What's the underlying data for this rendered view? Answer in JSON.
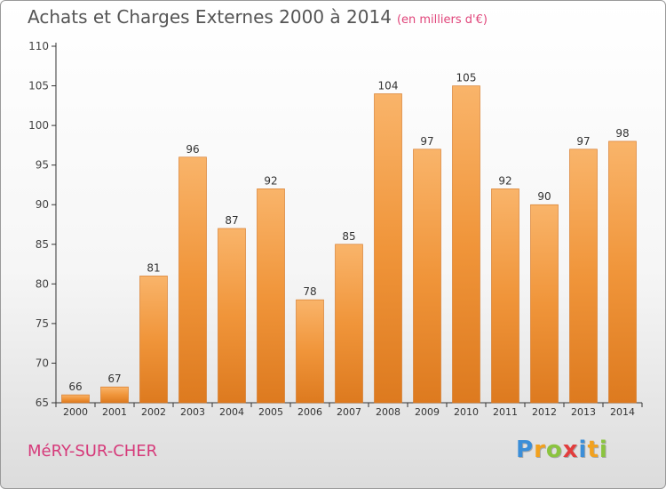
{
  "title": "Achats et Charges Externes 2000 à 2014",
  "subtitle": "(en milliers d'€)",
  "commune": "MéRY-SUR-CHER",
  "logo": {
    "letters": [
      "P",
      "r",
      "o",
      "x",
      "i",
      "t",
      "i"
    ],
    "colors": [
      "#3b8ed8",
      "#f2a11e",
      "#8bc43f",
      "#e23d3d",
      "#3b8ed8",
      "#f2a11e",
      "#8bc43f"
    ]
  },
  "colors": {
    "bar": "#f0953a",
    "bar_light": "#f9b46a",
    "bar_dark": "#dd7a1f",
    "axis": "#333333"
  },
  "chart_data": {
    "type": "bar",
    "title": "Achats et Charges Externes 2000 à 2014",
    "categories": [
      "2000",
      "2001",
      "2002",
      "2003",
      "2004",
      "2005",
      "2006",
      "2007",
      "2008",
      "2009",
      "2010",
      "2011",
      "2012",
      "2013",
      "2014"
    ],
    "values": [
      66,
      67,
      81,
      96,
      87,
      92,
      78,
      85,
      104,
      97,
      105,
      92,
      90,
      97,
      98
    ],
    "ylim": [
      65,
      110
    ],
    "yticks": [
      65,
      70,
      75,
      80,
      85,
      90,
      95,
      100,
      105,
      110
    ],
    "grid": false,
    "data_labels": true
  }
}
